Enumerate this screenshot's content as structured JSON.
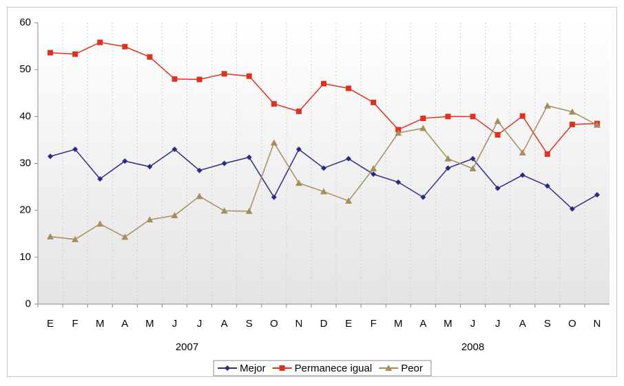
{
  "chart_data": {
    "type": "line",
    "categories": [
      "E",
      "F",
      "M",
      "A",
      "M",
      "J",
      "J",
      "A",
      "S",
      "O",
      "N",
      "D",
      "E",
      "F",
      "M",
      "A",
      "M",
      "J",
      "J",
      "A",
      "S",
      "O",
      "N"
    ],
    "groups": [
      {
        "label": "2007",
        "size": 12
      },
      {
        "label": "2008",
        "size": 11
      }
    ],
    "series": [
      {
        "name": "Mejor",
        "color": "#2b2b86",
        "marker": "diamond",
        "values": [
          31.5,
          33,
          26.7,
          30.5,
          29.3,
          33,
          28.5,
          30,
          31.3,
          22.8,
          33,
          29,
          31,
          27.7,
          26,
          22.8,
          29,
          31,
          24.7,
          27.5,
          25.2,
          20.3,
          23.3
        ]
      },
      {
        "name": "Permanece igual",
        "color": "#e0301e",
        "marker": "square",
        "values": [
          53.6,
          53.3,
          55.8,
          54.9,
          52.7,
          48,
          47.9,
          49.1,
          48.6,
          42.7,
          41.1,
          47,
          46,
          43,
          37.2,
          39.6,
          40,
          40,
          36.1,
          40.1,
          32,
          38.3,
          38.5
        ]
      },
      {
        "name": "Peor",
        "color": "#a58d5c",
        "marker": "triangle",
        "values": [
          14.4,
          13.8,
          17.1,
          14.3,
          18,
          18.9,
          23,
          19.9,
          19.8,
          34.4,
          25.8,
          24,
          22,
          28.9,
          36.5,
          37.5,
          31,
          28.9,
          39,
          32.3,
          42.3,
          41,
          38.2
        ]
      }
    ],
    "ylim": [
      0,
      60
    ],
    "yticks": [
      0,
      10,
      20,
      30,
      40,
      50,
      60
    ],
    "legend": "bottom"
  }
}
